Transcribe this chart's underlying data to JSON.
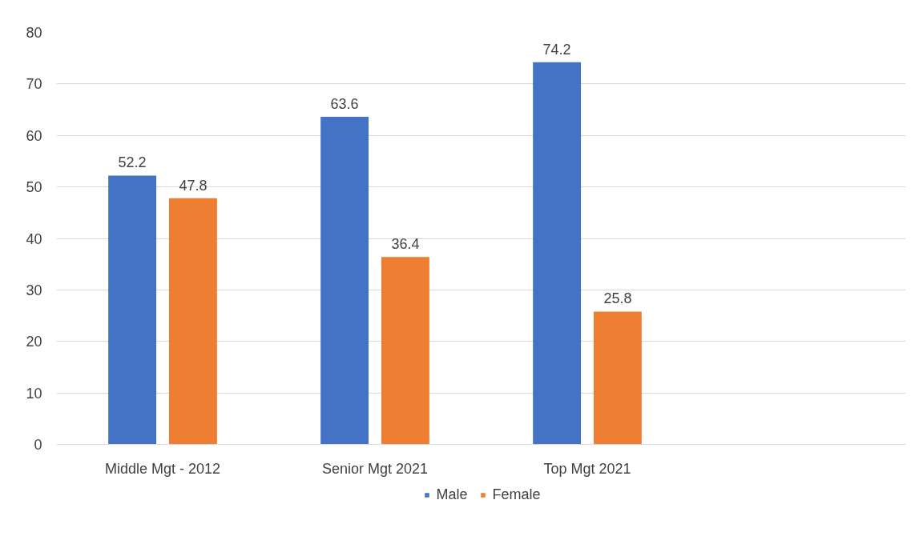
{
  "chart_data": {
    "type": "bar",
    "categories": [
      "Middle Mgt - 2012",
      "Senior Mgt 2021",
      "Top Mgt 2021",
      null
    ],
    "series": [
      {
        "name": "Male",
        "color": "#4472c4",
        "values": [
          52.2,
          63.6,
          74.2,
          null
        ]
      },
      {
        "name": "Female",
        "color": "#ed7d31",
        "values": [
          47.8,
          36.4,
          25.8,
          null
        ]
      }
    ],
    "ylim": [
      0,
      80
    ],
    "yticks": [
      0,
      10,
      20,
      30,
      40,
      50,
      60,
      70,
      80
    ],
    "grid": "y",
    "legend": "bottom",
    "data_labels": true
  }
}
